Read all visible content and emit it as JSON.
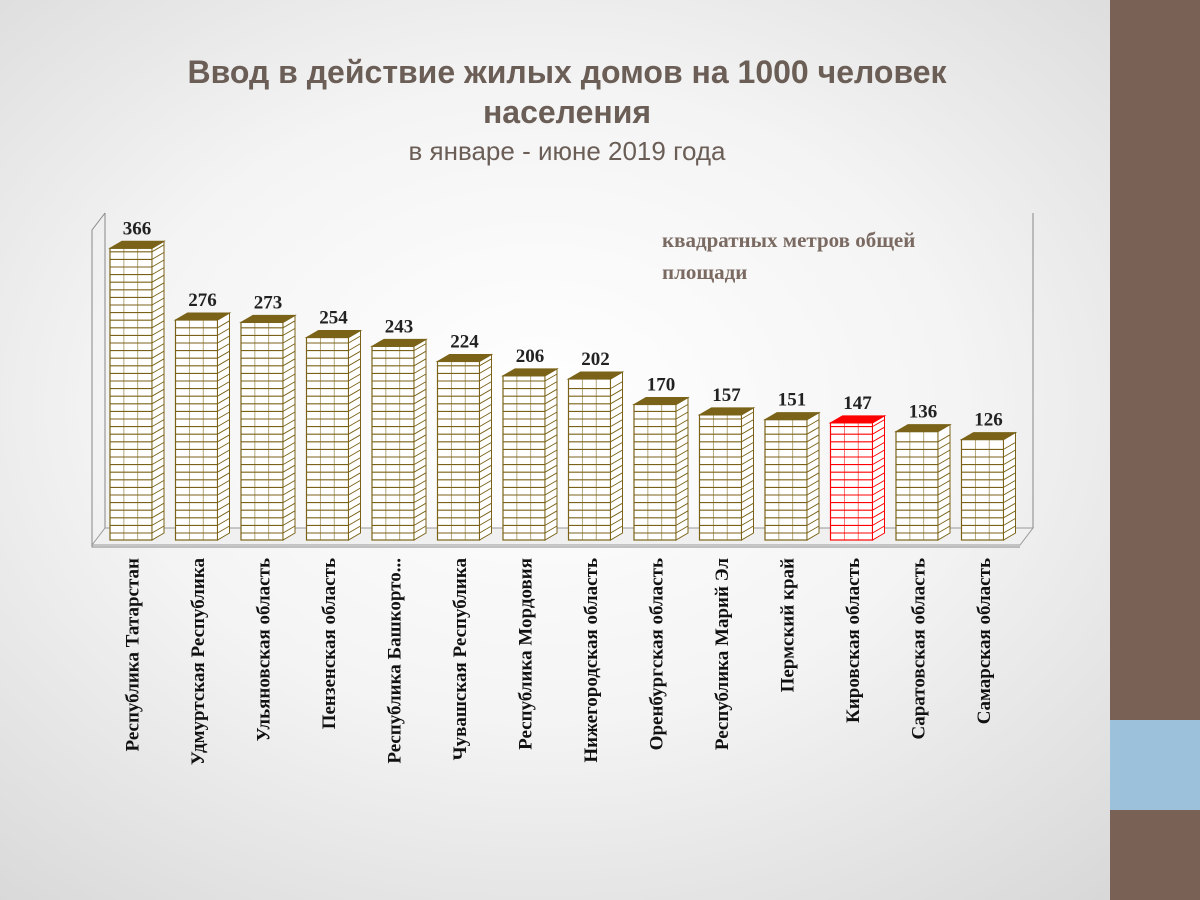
{
  "title": {
    "line1": "Ввод в действие жилых домов на 1000 человек",
    "line2": "населения",
    "subtitle": "в январе - июне 2019 года"
  },
  "unit_note": "квадратных метров общей площади",
  "colors": {
    "title": "#6b5e57",
    "bar": "#7a6318",
    "bar_highlight": "#ff0000",
    "side_brown": "#7a6155",
    "side_blue": "#9cc2db"
  },
  "chart_data": {
    "type": "bar",
    "categories": [
      "Республика Татарстан",
      "Удмуртская Республика",
      "Ульяновская область",
      "Пензенская область",
      "Республика Башкорто...",
      "Чувашская Республика",
      "Республика Мордовия",
      "Нижегородская область",
      "Оренбургская область",
      "Республика  Марий Эл",
      "Пермский край",
      "Кировская область",
      "Саратовская область",
      "Самарская область"
    ],
    "values": [
      366,
      276,
      273,
      254,
      243,
      224,
      206,
      202,
      170,
      157,
      151,
      147,
      136,
      126
    ],
    "highlight": "Кировская область",
    "ylim": [
      0,
      400
    ],
    "grid": false,
    "legend": "none"
  }
}
